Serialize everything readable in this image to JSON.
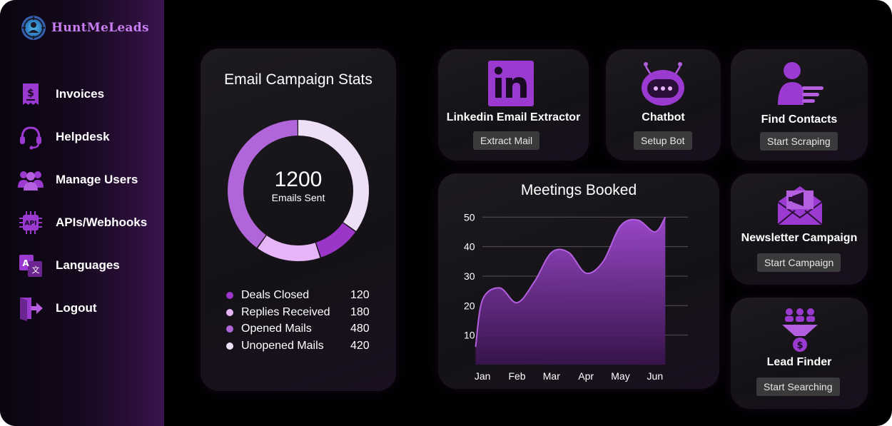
{
  "brand": {
    "name": "HuntMeLeads"
  },
  "sidebar": {
    "items": [
      {
        "label": "Invoices",
        "icon": "invoice-icon"
      },
      {
        "label": "Helpdesk",
        "icon": "headset-icon"
      },
      {
        "label": "Manage Users",
        "icon": "users-icon"
      },
      {
        "label": "APIs/Webhooks",
        "icon": "api-chip-icon"
      },
      {
        "label": "Languages",
        "icon": "translate-icon"
      },
      {
        "label": "Logout",
        "icon": "logout-icon"
      }
    ]
  },
  "stats": {
    "title": "Email Campaign Stats",
    "total": "1200",
    "total_label": "Emails Sent",
    "legend": [
      {
        "label": "Deals Closed",
        "value": "120",
        "color": "#9b36c8"
      },
      {
        "label": "Replies Received",
        "value": "180",
        "color": "#e8b4f8"
      },
      {
        "label": "Opened Mails",
        "value": "480",
        "color": "#b066d8"
      },
      {
        "label": "Unopened Mails",
        "value": "420",
        "color": "#ecdff6"
      }
    ]
  },
  "tools": {
    "linkedin": {
      "title": "Linkedin Email Extractor",
      "button": "Extract Mail",
      "icon": "linkedin-icon"
    },
    "chatbot": {
      "title": "Chatbot",
      "button": "Setup Bot",
      "icon": "robot-icon"
    },
    "contacts": {
      "title": "Find Contacts",
      "button": "Start Scraping",
      "icon": "contact-list-icon"
    },
    "newsletter": {
      "title": "Newsletter Campaign",
      "button": "Start Campaign",
      "icon": "megaphone-envelope-icon"
    },
    "leadfinder": {
      "title": "Lead Finder",
      "button": "Start Searching",
      "icon": "funnel-people-icon"
    }
  },
  "chart_data": {
    "type": "area",
    "title": "Meetings Booked",
    "categories": [
      "Jan",
      "Feb",
      "Mar",
      "Apr",
      "May",
      "Jun"
    ],
    "x": [
      0.8,
      1,
      1.5,
      2,
      2.5,
      3,
      3.5,
      4,
      4.5,
      5,
      5.5,
      6,
      6.3
    ],
    "values": [
      6,
      22,
      26,
      21,
      28,
      38,
      38,
      31,
      35,
      47,
      49,
      45,
      50
    ],
    "yticks": [
      10,
      20,
      30,
      40,
      50
    ],
    "ylim": [
      0,
      52
    ],
    "grid": true,
    "color": "#b35fe0"
  },
  "colors": {
    "accent": "#9b36c8",
    "button_bg": "#3a3a3c"
  }
}
